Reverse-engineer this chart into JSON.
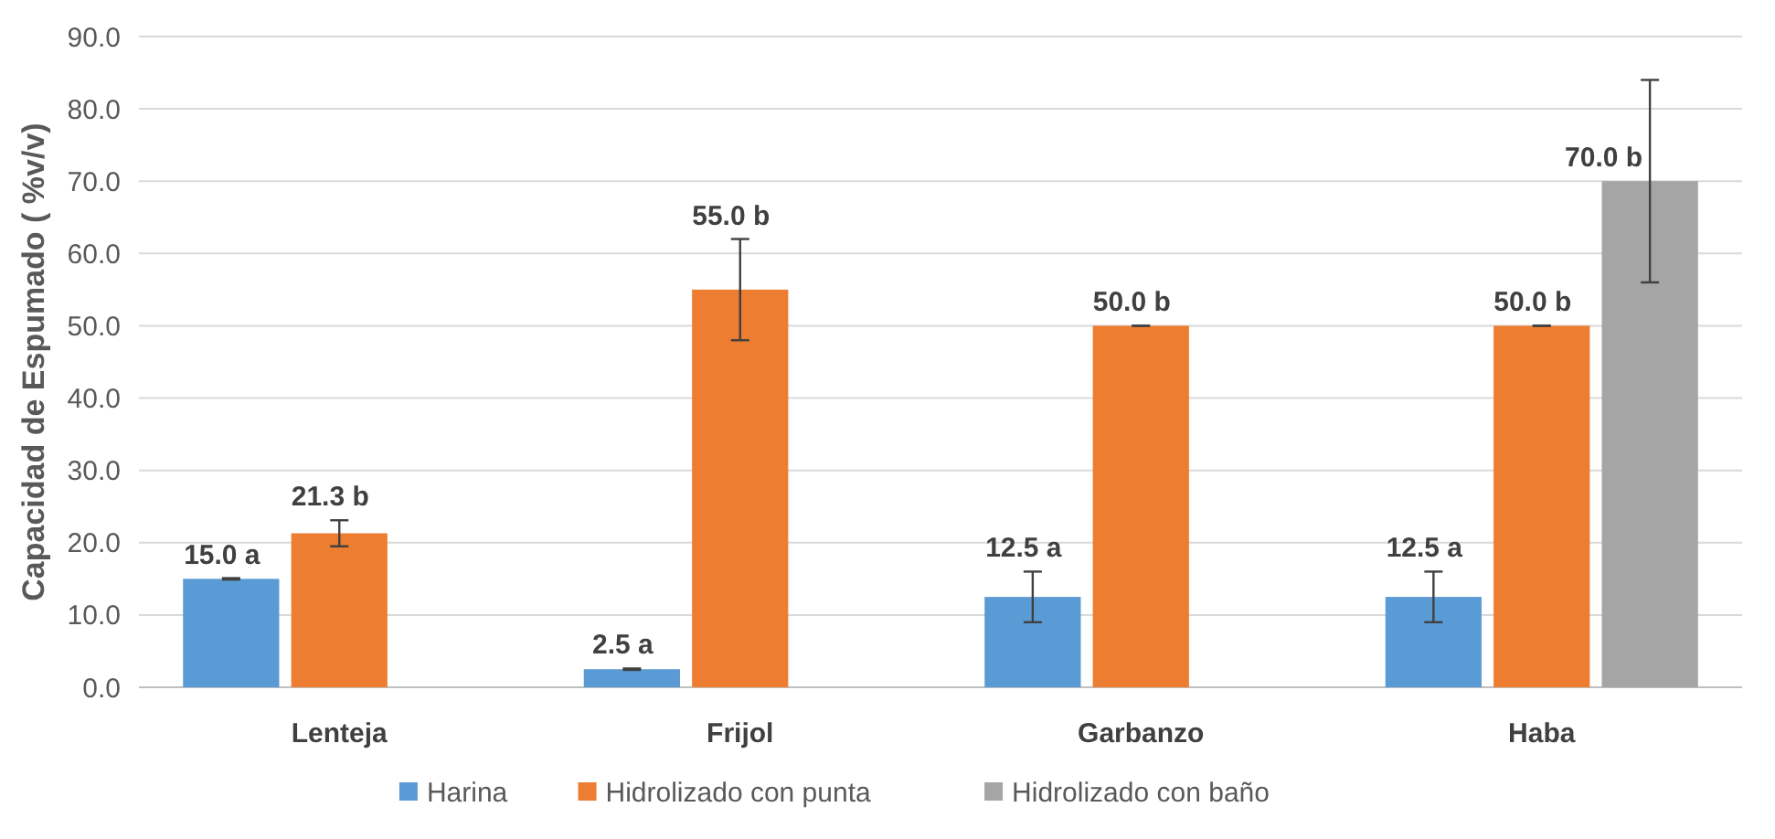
{
  "chart_data": {
    "type": "bar",
    "ylabel": "Capacidad de Espumado ( %v/v)",
    "categories": [
      "Lenteja",
      "Frijol",
      "Garbanzo",
      "Haba"
    ],
    "series": [
      {
        "name": "Harina",
        "color": "#5b9bd5",
        "values": [
          15.0,
          2.5,
          12.5,
          12.5
        ],
        "errors": [
          0.1,
          0.1,
          3.5,
          3.5
        ],
        "value_labels": [
          "15.0 a",
          "2.5 a",
          "12.5 a",
          "12.5 a"
        ]
      },
      {
        "name": "Hidrolizado con punta",
        "color": "#ed7d31",
        "values": [
          21.3,
          55.0,
          50.0,
          50.0
        ],
        "errors": [
          1.8,
          7,
          0,
          0
        ],
        "value_labels": [
          "21.3 b",
          "55.0 b",
          "50.0 b",
          "50.0 b"
        ]
      },
      {
        "name": "Hidrolizado con baño",
        "color": "#a5a5a5",
        "values": [
          null,
          null,
          null,
          70.0
        ],
        "errors": [
          null,
          null,
          null,
          14
        ],
        "value_labels": [
          null,
          null,
          null,
          "70.0 b"
        ]
      }
    ],
    "ylim": [
      0,
      90
    ],
    "yticks": [
      {
        "value": 0,
        "label": "0.0"
      },
      {
        "value": 10,
        "label": "10.0"
      },
      {
        "value": 20,
        "label": "20.0"
      },
      {
        "value": 30,
        "label": "30.0"
      },
      {
        "value": 40,
        "label": "40.0"
      },
      {
        "value": 50,
        "label": "50.0"
      },
      {
        "value": 60,
        "label": "60.0"
      },
      {
        "value": 70,
        "label": "70.0"
      },
      {
        "value": 80,
        "label": "80.0"
      },
      {
        "value": 90,
        "label": "90.0"
      }
    ],
    "grid": "y",
    "legend": "bottom"
  }
}
